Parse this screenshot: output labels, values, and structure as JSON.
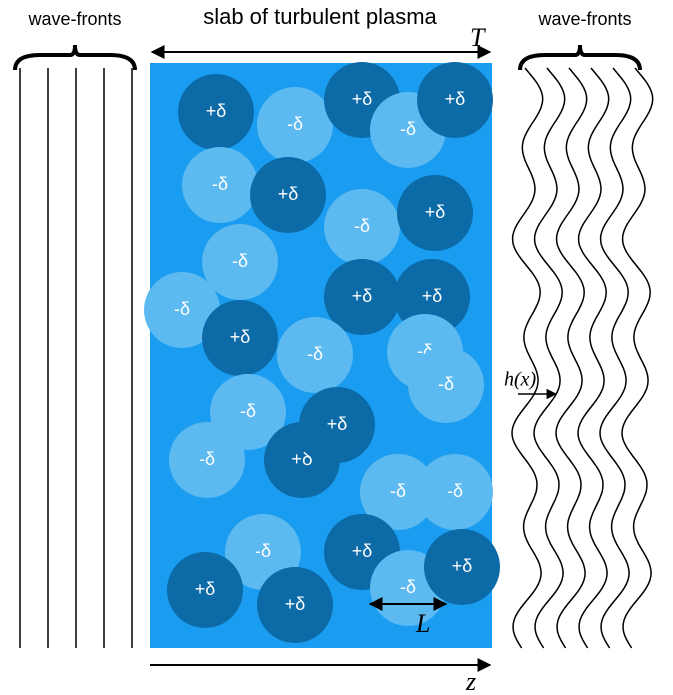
{
  "header": {
    "left_label": "wave-fronts",
    "title": "slab of turbulent plasma",
    "right_label": "wave-fronts"
  },
  "symbols": {
    "T": "T",
    "h": "h(x)",
    "L": "L",
    "z": "z"
  },
  "slab": {
    "color": "#1a9cf0"
  },
  "blobs": [
    {
      "label": "+δ",
      "color": "#0c6aa7"
    },
    {
      "label": "-δ",
      "color": "#5cbaf0"
    },
    {
      "label": "+δ",
      "color": "#0c6aa7"
    },
    {
      "label": "-δ",
      "color": "#5cbaf0"
    },
    {
      "label": "+δ",
      "color": "#0c6aa7"
    },
    {
      "label": "-δ",
      "color": "#5cbaf0"
    },
    {
      "label": "+δ",
      "color": "#0c6aa7"
    },
    {
      "label": "-δ",
      "color": "#5cbaf0"
    },
    {
      "label": "+δ",
      "color": "#0c6aa7"
    },
    {
      "label": "-δ",
      "color": "#5cbaf0"
    },
    {
      "label": "+δ",
      "color": "#0c6aa7"
    },
    {
      "label": "+δ",
      "color": "#0c6aa7"
    },
    {
      "label": "-δ",
      "color": "#5cbaf0"
    },
    {
      "label": "+δ",
      "color": "#0c6aa7"
    },
    {
      "label": "-δ",
      "color": "#5cbaf0"
    },
    {
      "label": "-δ",
      "color": "#5cbaf0"
    },
    {
      "label": "-δ",
      "color": "#5cbaf0"
    },
    {
      "label": "+δ",
      "color": "#0c6aa7"
    },
    {
      "label": "-δ",
      "color": "#5cbaf0"
    },
    {
      "label": "-δ",
      "color": "#5cbaf0"
    },
    {
      "label": "+ꝺ",
      "color": "#0c6aa7"
    },
    {
      "label": "-δ",
      "color": "#5cbaf0"
    },
    {
      "label": "-δ",
      "color": "#5cbaf0"
    },
    {
      "label": "-δ",
      "color": "#5cbaf0"
    },
    {
      "label": "+δ",
      "color": "#0c6aa7"
    },
    {
      "label": "-δ",
      "color": "#5cbaf0"
    },
    {
      "label": "+δ",
      "color": "#0c6aa7"
    },
    {
      "label": "+δ",
      "color": "#0c6aa7"
    },
    {
      "label": "+δ",
      "color": "#0c6aa7"
    }
  ]
}
